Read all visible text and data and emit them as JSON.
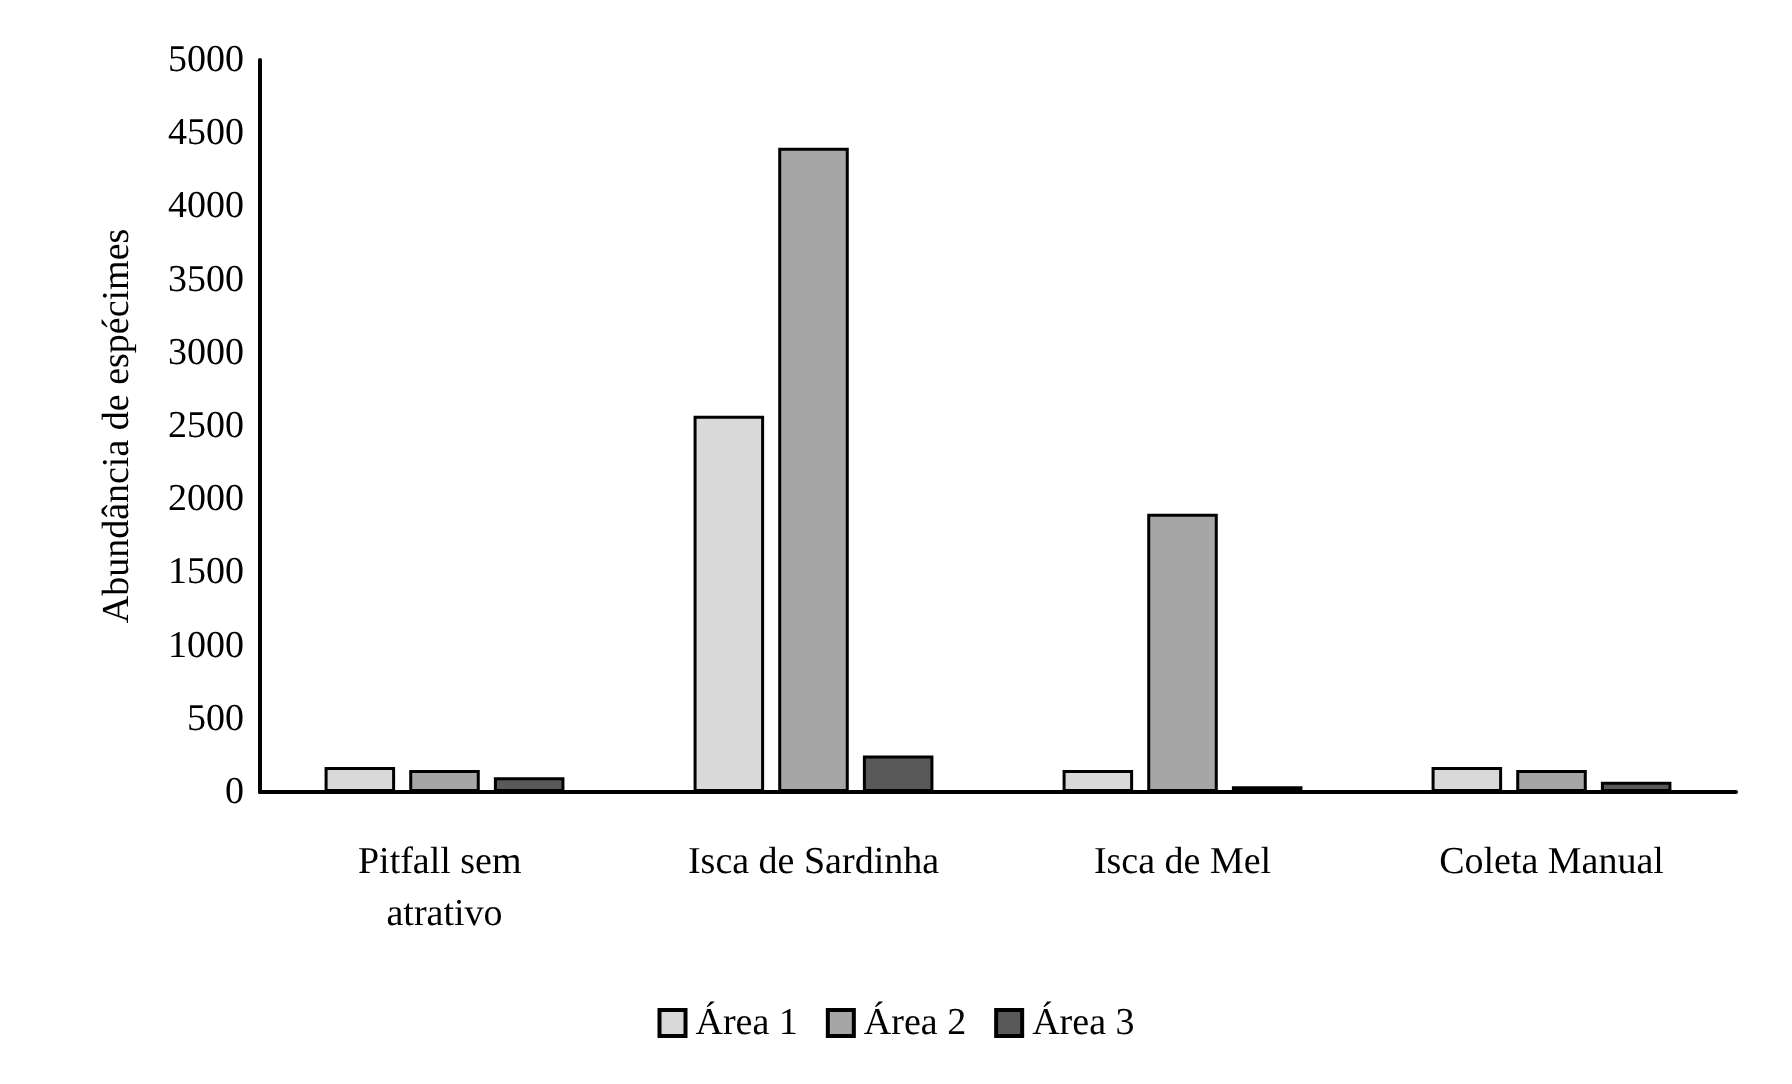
{
  "chart_data": {
    "type": "bar",
    "ylabel": "Abundância de espécimes",
    "categories": [
      "Pitfall sem atrativo",
      "Isca de Sardinha",
      "Isca de Mel",
      "Coleta Manual"
    ],
    "series": [
      {
        "name": "Área 1",
        "color": "#d9d9d9",
        "values": [
          170,
          2570,
          150,
          170
        ]
      },
      {
        "name": "Área 2",
        "color": "#a6a6a6",
        "values": [
          150,
          4400,
          1900,
          150
        ]
      },
      {
        "name": "Área 3",
        "color": "#595959",
        "values": [
          100,
          250,
          40,
          70
        ]
      }
    ],
    "ylim": [
      0,
      5000
    ],
    "yticks": [
      0,
      500,
      1000,
      1500,
      2000,
      2500,
      3000,
      3500,
      4000,
      4500,
      5000
    ],
    "grid": false,
    "legend": "bottom"
  }
}
